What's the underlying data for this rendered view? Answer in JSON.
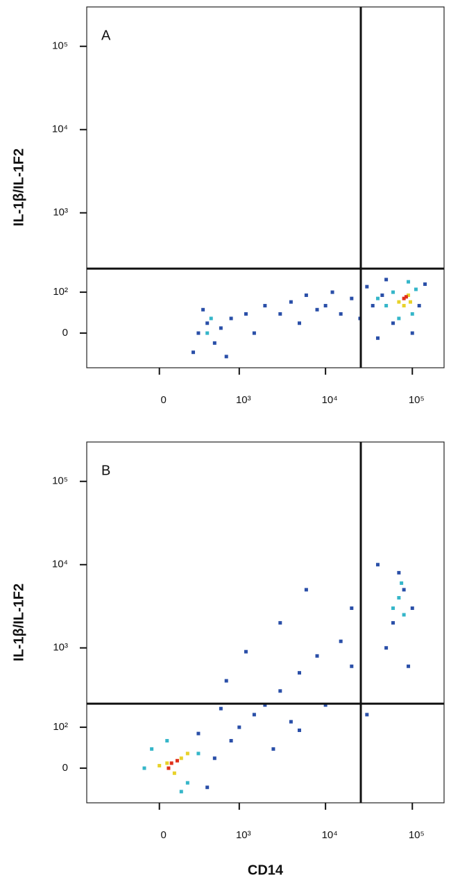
{
  "chart_data": [
    {
      "type": "scatter",
      "panel_label": "A",
      "y_label": "IL-1β/IL-1F2",
      "xscale": "biexponential",
      "yscale": "biexponential",
      "xlim": [
        -820,
        232000
      ],
      "ylim": [
        -80,
        297000
      ],
      "xticks": [
        0,
        {
          "value": 1000,
          "label": "10³"
        },
        {
          "value": 10000,
          "label": "10⁴"
        },
        {
          "value": 100000,
          "label": "10⁵"
        }
      ],
      "yticks": [
        0,
        {
          "value": 100,
          "label": "10²"
        },
        {
          "value": 1000,
          "label": "10³"
        },
        {
          "value": 10000,
          "label": "10⁴"
        },
        {
          "value": 100000,
          "label": "10⁵"
        }
      ],
      "gates": {
        "x": 25500,
        "y": 208
      },
      "series": [
        {
          "color": "#2a4fa8",
          "x": [
            300,
            400,
            500,
            350,
            600,
            800,
            1200,
            1500,
            2000,
            3000,
            4000,
            5000,
            6000,
            8000,
            10000,
            12000,
            15000,
            20000,
            25000,
            30000,
            40000,
            50000,
            60000,
            100000,
            120000,
            140000,
            35000,
            45000,
            250,
            700
          ],
          "values": [
            0,
            20,
            -20,
            50,
            10,
            30,
            40,
            0,
            60,
            40,
            70,
            20,
            90,
            50,
            60,
            100,
            40,
            80,
            30,
            120,
            -10,
            150,
            20,
            0,
            60,
            130,
            60,
            90,
            -40,
            -50
          ]
        },
        {
          "color": "#35b6c9",
          "x": [
            400,
            450,
            50000,
            60000,
            100000,
            70000,
            110000,
            90000,
            40000
          ],
          "values": [
            0,
            30,
            60,
            100,
            40,
            30,
            110,
            140,
            80
          ]
        },
        {
          "color": "#e8d22a",
          "x": [
            70000,
            90000,
            80000,
            95000
          ],
          "values": [
            70,
            90,
            60,
            70
          ]
        },
        {
          "color": "#e0301a",
          "x": [
            85000,
            80000
          ],
          "values": [
            85,
            80
          ]
        }
      ]
    },
    {
      "type": "scatter",
      "panel_label": "B",
      "y_label": "IL-1β/IL-1F2",
      "x_label": "CD14",
      "xscale": "biexponential",
      "yscale": "biexponential",
      "xlim": [
        -820,
        232000
      ],
      "ylim": [
        -80,
        297000
      ],
      "xticks": [
        0,
        {
          "value": 1000,
          "label": "10³"
        },
        {
          "value": 10000,
          "label": "10⁴"
        },
        {
          "value": 100000,
          "label": "10⁵"
        }
      ],
      "yticks": [
        0,
        {
          "value": 100,
          "label": "10²"
        },
        {
          "value": 1000,
          "label": "10³"
        },
        {
          "value": 10000,
          "label": "10⁴"
        },
        {
          "value": 100000,
          "label": "10⁵"
        }
      ],
      "gates": {
        "x": 25500,
        "y": 208
      },
      "series": [
        {
          "color": "#2a4fa8",
          "x": [
            500,
            800,
            1000,
            1500,
            2000,
            3000,
            4000,
            5000,
            8000,
            10000,
            15000,
            2500,
            700,
            1200,
            3000,
            6000,
            20000,
            30000,
            50000,
            60000,
            80000,
            70000,
            100000,
            40000,
            90000,
            400,
            300,
            5000,
            20000,
            600
          ],
          "values": [
            20,
            60,
            100,
            150,
            200,
            300,
            120,
            500,
            800,
            200,
            1200,
            40,
            400,
            900,
            2000,
            5000,
            600,
            150,
            1000,
            2000,
            5000,
            8000,
            3000,
            10000,
            600,
            -40,
            80,
            90,
            3000,
            180
          ]
        },
        {
          "color": "#35b6c9",
          "x": [
            60000,
            70000,
            80000,
            75000,
            -100,
            300,
            200,
            -50,
            50,
            150
          ],
          "values": [
            3000,
            4000,
            2500,
            6000,
            0,
            30,
            -30,
            40,
            60,
            -50
          ]
        },
        {
          "color": "#e8d22a",
          "x": [
            50,
            150,
            100,
            0,
            200
          ],
          "values": [
            10,
            20,
            -10,
            5,
            30
          ]
        },
        {
          "color": "#e0301a",
          "x": [
            80,
            120,
            60
          ],
          "values": [
            10,
            15,
            0
          ]
        }
      ]
    }
  ]
}
